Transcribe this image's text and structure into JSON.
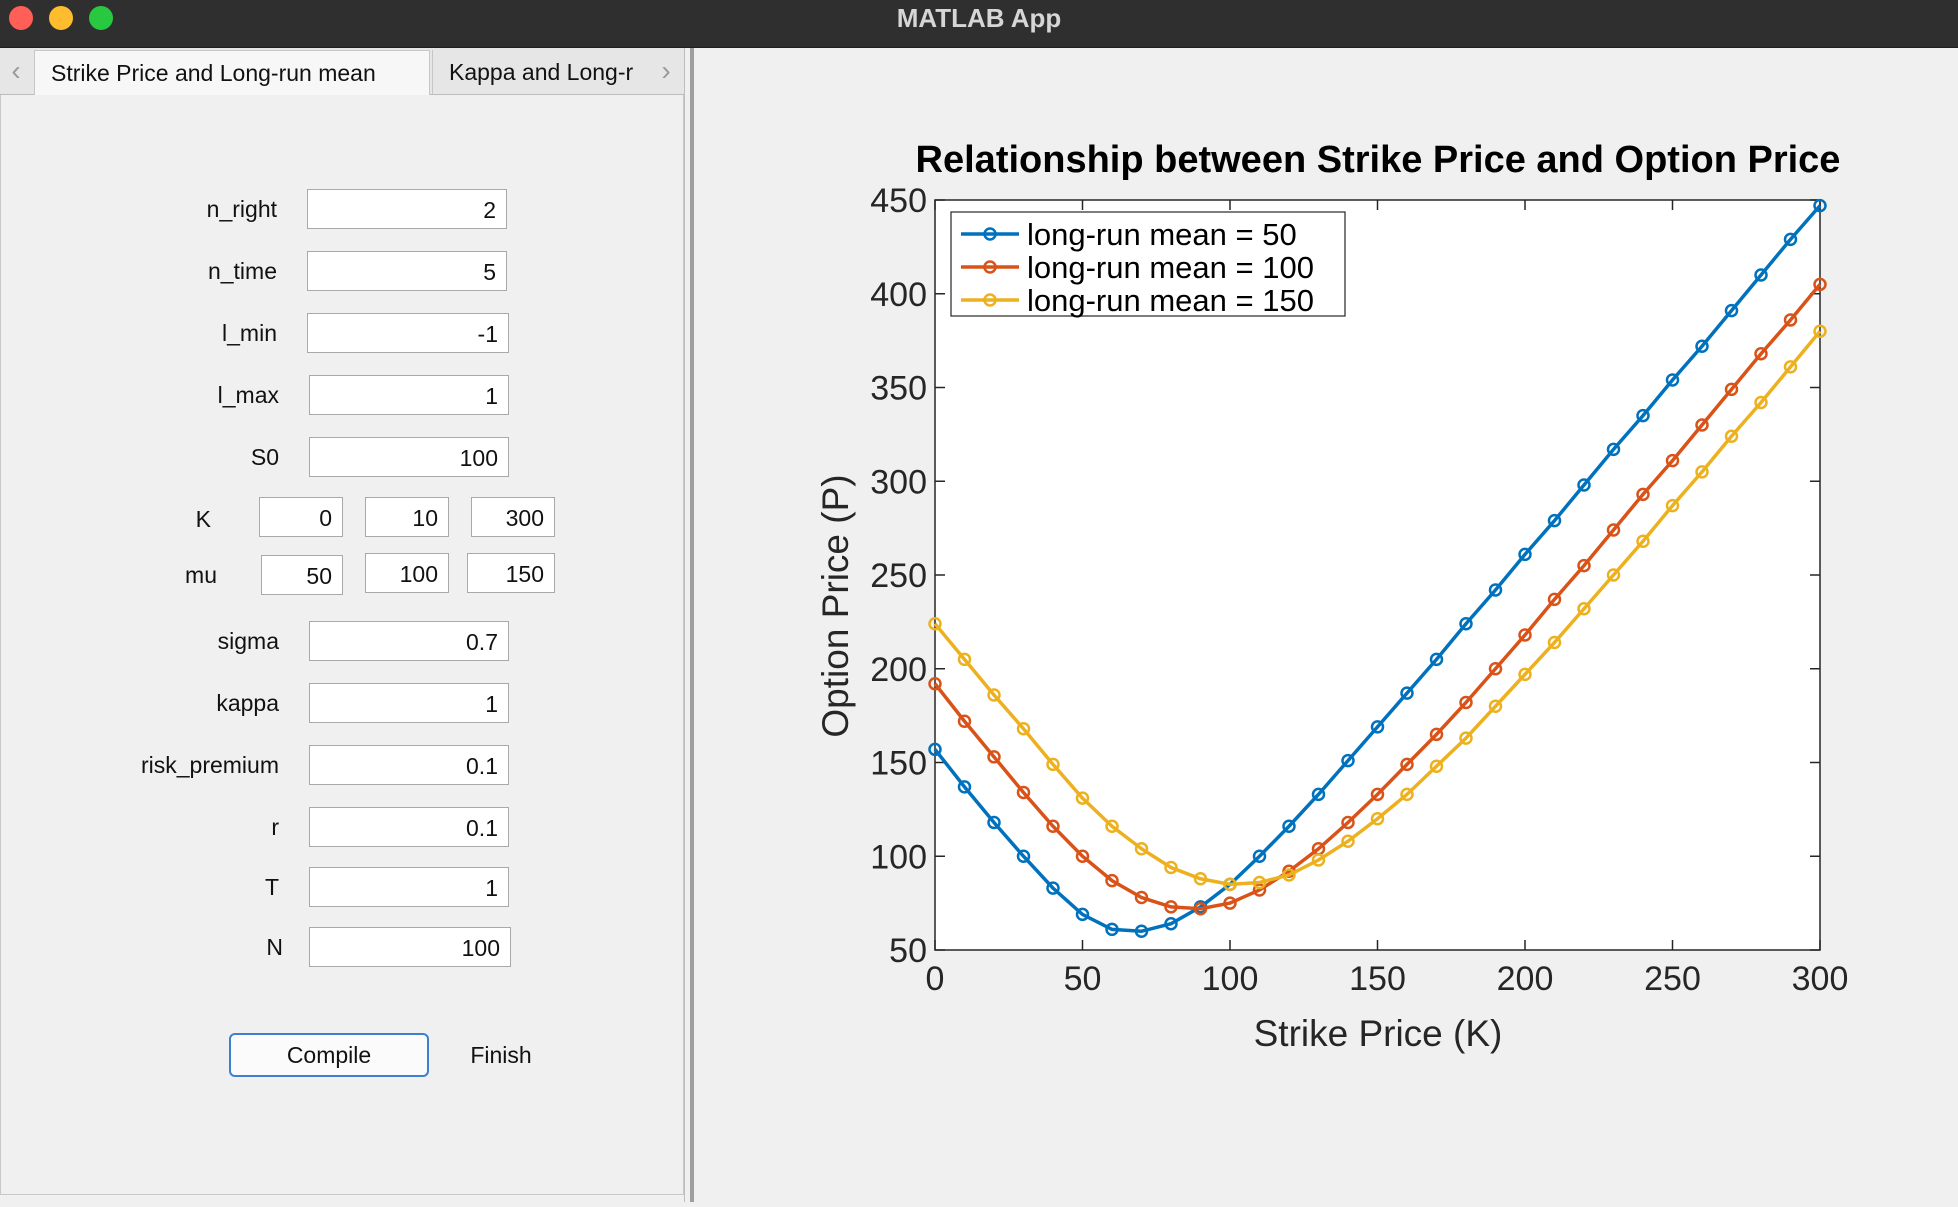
{
  "window": {
    "title": "MATLAB App"
  },
  "tabs": {
    "prev_arrow": "‹",
    "next_arrow": "›",
    "items": [
      {
        "label": "Strike Price and Long-run mean"
      },
      {
        "label": "Kappa and Long-r"
      }
    ]
  },
  "form": {
    "n_right": {
      "label": "n_right",
      "value": "2"
    },
    "n_time": {
      "label": "n_time",
      "value": "5"
    },
    "l_min": {
      "label": "l_min",
      "value": "-1"
    },
    "l_max": {
      "label": "l_max",
      "value": "1"
    },
    "S0": {
      "label": "S0",
      "value": "100"
    },
    "K": {
      "label": "K",
      "values": [
        "0",
        "10",
        "300"
      ]
    },
    "mu": {
      "label": "mu",
      "values": [
        "50",
        "100",
        "150"
      ]
    },
    "sigma": {
      "label": "sigma",
      "value": "0.7"
    },
    "kappa": {
      "label": "kappa",
      "value": "1"
    },
    "risk_premium": {
      "label": "risk_premium",
      "value": "0.1"
    },
    "r": {
      "label": "r",
      "value": "0.1"
    },
    "T": {
      "label": "T",
      "value": "1"
    },
    "N": {
      "label": "N",
      "value": "100"
    }
  },
  "buttons": {
    "compile": "Compile",
    "finish": "Finish"
  },
  "chart_data": {
    "type": "line",
    "title": "Relationship between Strike Price and Option Price",
    "xlabel": "Strike Price (K)",
    "ylabel": "Option Price (P)",
    "xlim": [
      0,
      300
    ],
    "ylim": [
      50,
      450
    ],
    "xticks": [
      0,
      50,
      100,
      150,
      200,
      250,
      300
    ],
    "yticks": [
      50,
      100,
      150,
      200,
      250,
      300,
      350,
      400,
      450
    ],
    "grid": false,
    "legend_position": "top-left",
    "x": [
      0,
      10,
      20,
      30,
      40,
      50,
      60,
      70,
      80,
      90,
      100,
      110,
      120,
      130,
      140,
      150,
      160,
      170,
      180,
      190,
      200,
      210,
      220,
      230,
      240,
      250,
      260,
      270,
      280,
      290,
      300
    ],
    "series": [
      {
        "name": "long-run mean = 50",
        "color": "#0072BD",
        "values": [
          157,
          137,
          118,
          100,
          83,
          69,
          61,
          60,
          64,
          73,
          85,
          100,
          116,
          133,
          151,
          169,
          187,
          205,
          224,
          242,
          261,
          279,
          298,
          317,
          335,
          354,
          372,
          391,
          410,
          429,
          447
        ]
      },
      {
        "name": "long-run mean = 100",
        "color": "#D95319",
        "values": [
          192,
          172,
          153,
          134,
          116,
          100,
          87,
          78,
          73,
          72,
          75,
          82,
          92,
          104,
          118,
          133,
          149,
          165,
          182,
          200,
          218,
          237,
          255,
          274,
          293,
          311,
          330,
          349,
          368,
          386,
          405
        ]
      },
      {
        "name": "long-run mean = 150",
        "color": "#EDB120",
        "values": [
          224,
          205,
          186,
          168,
          149,
          131,
          116,
          104,
          94,
          88,
          85,
          86,
          90,
          98,
          108,
          120,
          133,
          148,
          163,
          180,
          197,
          214,
          232,
          250,
          268,
          287,
          305,
          324,
          342,
          361,
          380
        ]
      }
    ]
  }
}
